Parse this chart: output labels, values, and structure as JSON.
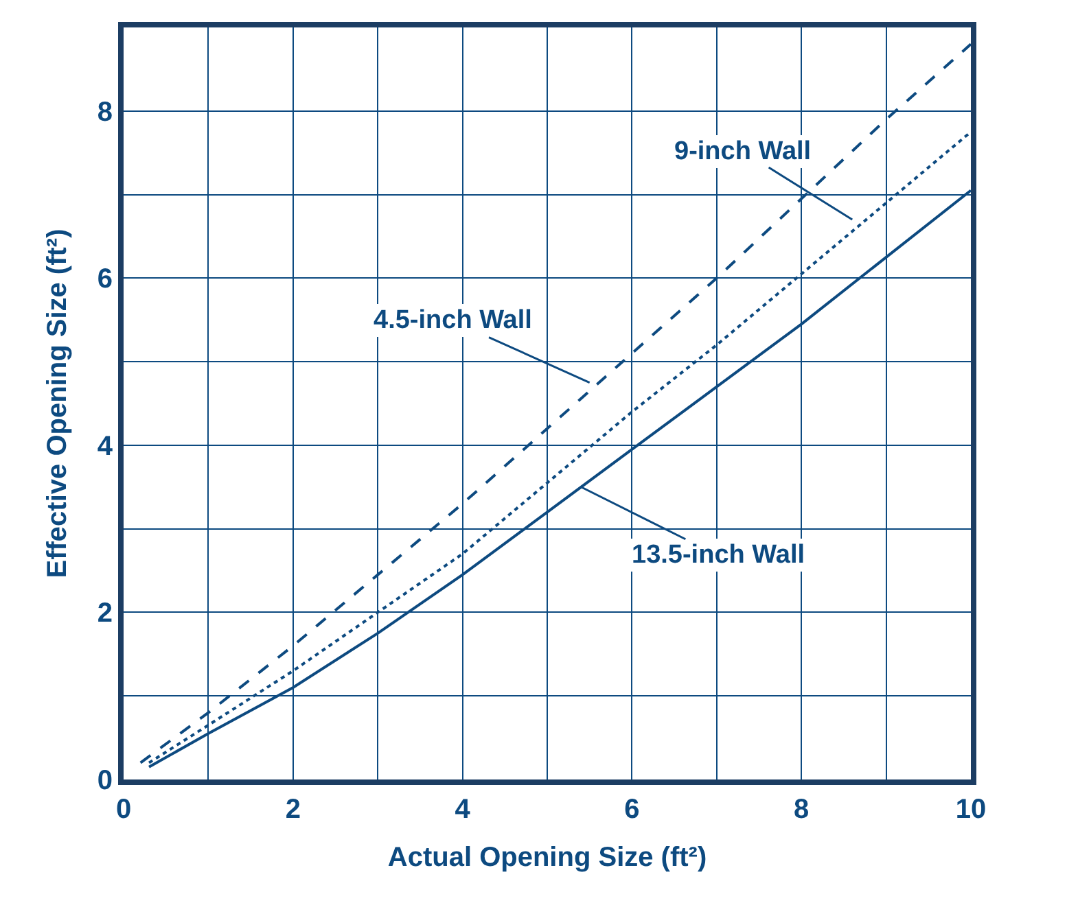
{
  "chart_data": {
    "type": "line",
    "xlabel": "Actual Opening Size (ft²)",
    "ylabel": "Effective Opening Size (ft²)",
    "xlim": [
      0,
      10
    ],
    "ylim": [
      0,
      9
    ],
    "xticks": [
      0,
      2,
      4,
      6,
      8,
      10
    ],
    "yticks": [
      0,
      2,
      4,
      6,
      8
    ],
    "grid": true,
    "marker": "none",
    "series": [
      {
        "color": "#0d4a80",
        "line_style": "dashed",
        "x": [
          0.2,
          1,
          2,
          3,
          4,
          5,
          6,
          7,
          8,
          9,
          10
        ],
        "values": [
          0.2,
          0.8,
          1.6,
          2.45,
          3.3,
          4.2,
          5.1,
          6.0,
          6.95,
          7.9,
          8.8
        ]
      },
      {
        "color": "#0d4a80",
        "line_style": "dotted",
        "x": [
          0.3,
          1,
          2,
          3,
          4,
          5,
          6,
          7,
          8,
          9,
          10
        ],
        "values": [
          0.2,
          0.65,
          1.3,
          2.0,
          2.7,
          3.55,
          4.4,
          5.2,
          6.05,
          6.9,
          7.75
        ]
      },
      {
        "color": "#0d4a80",
        "line_style": "solid",
        "x": [
          0.3,
          1,
          2,
          3,
          4,
          5,
          6,
          7,
          8,
          9,
          10
        ],
        "values": [
          0.15,
          0.55,
          1.1,
          1.75,
          2.45,
          3.2,
          3.95,
          4.7,
          5.45,
          6.25,
          7.05
        ]
      }
    ],
    "annotations": [
      {
        "text": "4.5-inch Wall",
        "x": 5.5,
        "y": 4.75
      },
      {
        "text": "9-inch Wall",
        "x": 8.6,
        "y": 6.7
      },
      {
        "text": "13.5-inch Wall",
        "x": 5.4,
        "y": 3.5
      }
    ]
  }
}
